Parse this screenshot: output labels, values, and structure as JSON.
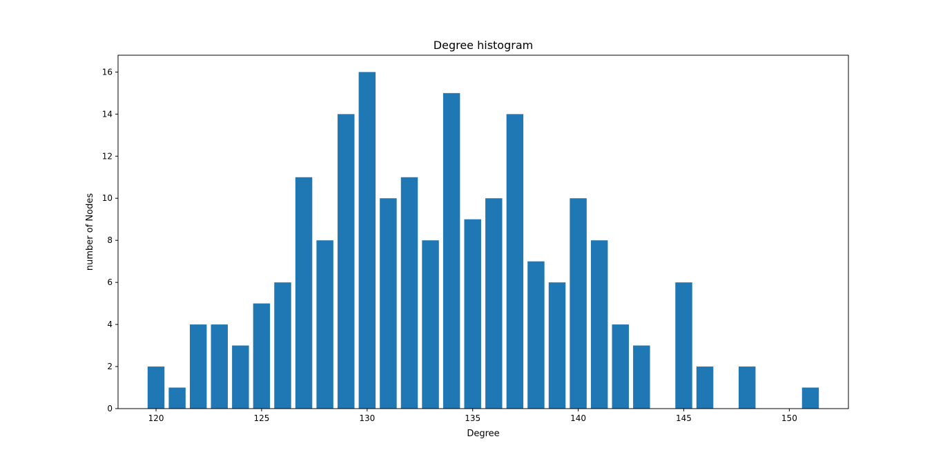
{
  "chart_data": {
    "type": "bar",
    "title": "Degree histogram",
    "xlabel": "Degree",
    "ylabel": "number of Nodes",
    "x": [
      120,
      121,
      122,
      123,
      124,
      125,
      126,
      127,
      128,
      129,
      130,
      131,
      132,
      133,
      134,
      135,
      136,
      137,
      138,
      139,
      140,
      141,
      142,
      143,
      145,
      146,
      148,
      151
    ],
    "values": [
      2,
      1,
      4,
      4,
      3,
      5,
      6,
      11,
      8,
      14,
      16,
      10,
      11,
      8,
      15,
      9,
      10,
      14,
      7,
      6,
      10,
      8,
      4,
      3,
      6,
      2,
      2,
      1
    ],
    "xlim": [
      118.2,
      152.8
    ],
    "ylim": [
      0,
      16.8
    ],
    "xticks": [
      120,
      125,
      130,
      135,
      140,
      145,
      150
    ],
    "yticks": [
      0,
      2,
      4,
      6,
      8,
      10,
      12,
      14,
      16
    ],
    "grid": false,
    "legend": "none",
    "colors": {
      "bar": "#1f77b4",
      "axes": "#000000",
      "background": "#ffffff"
    }
  }
}
